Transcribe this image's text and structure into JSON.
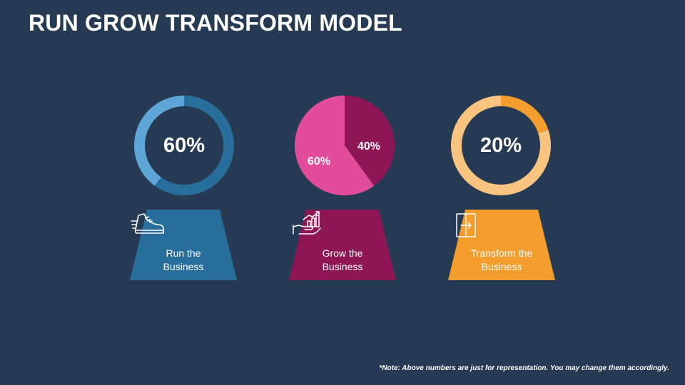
{
  "title": "RUN GROW TRANSFORM MODEL",
  "chart_data": [
    {
      "type": "pie",
      "style": "donut",
      "center_label": "60%",
      "slices": [
        {
          "value": 60,
          "color": "#276e9b"
        },
        {
          "value": 40,
          "color": "#5ea6d8"
        }
      ]
    },
    {
      "type": "pie",
      "slices": [
        {
          "value": 40,
          "label": "40%",
          "color": "#8e1654"
        },
        {
          "value": 60,
          "label": "60%",
          "color": "#e34c9b"
        }
      ]
    },
    {
      "type": "pie",
      "style": "donut",
      "center_label": "20%",
      "slices": [
        {
          "value": 20,
          "color": "#f29d2c"
        },
        {
          "value": 80,
          "color": "#f8c47f"
        }
      ]
    }
  ],
  "cards": [
    {
      "line1": "Run the",
      "line2": "Business",
      "color": "#276e9b",
      "icon": "running-shoe-icon"
    },
    {
      "line1": "Grow the",
      "line2": "Business",
      "color": "#8e1654",
      "icon": "growth-chart-hand-icon"
    },
    {
      "line1": "Transform the",
      "line2": "Business",
      "color": "#f29d2c",
      "icon": "transform-box-arrow-icon"
    }
  ],
  "note": "*Note: Above numbers are just for representation. You may change them accordingly."
}
